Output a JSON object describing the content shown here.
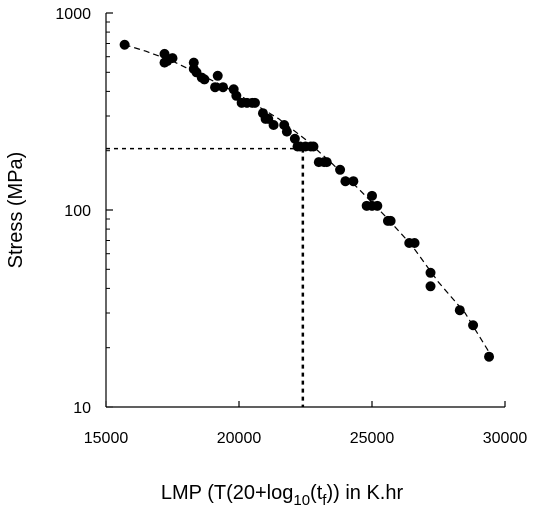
{
  "chart_data": {
    "type": "scatter",
    "ylabel": "Stress (MPa)",
    "xlabel_parts": {
      "prefix": "LMP (T(20+log",
      "sub1": "10",
      "mid": "(t",
      "sub2": "f",
      "suffix": ")) in K.hr"
    },
    "xlim": [
      15000,
      30000
    ],
    "ylim": [
      10,
      1000
    ],
    "yscale": "log",
    "x_ticks": [
      15000,
      20000,
      25000,
      30000
    ],
    "x_tick_labels": [
      "15000",
      "20000",
      "25000",
      "30000"
    ],
    "y_ticks": [
      10,
      100,
      1000
    ],
    "y_tick_labels": [
      "10",
      "100",
      "1000"
    ],
    "grid": false,
    "legend": "none",
    "marker_color": "#000000",
    "series": [
      {
        "points": [
          [
            15700,
            690
          ],
          [
            17200,
            620
          ],
          [
            17200,
            560
          ],
          [
            17500,
            590
          ],
          [
            17300,
            570
          ],
          [
            18300,
            560
          ],
          [
            18300,
            520
          ],
          [
            18400,
            500
          ],
          [
            18700,
            460
          ],
          [
            18600,
            470
          ],
          [
            19200,
            480
          ],
          [
            19100,
            420
          ],
          [
            19400,
            420
          ],
          [
            19800,
            410
          ],
          [
            19900,
            380
          ],
          [
            20100,
            350
          ],
          [
            20300,
            350
          ],
          [
            20500,
            350
          ],
          [
            20600,
            350
          ],
          [
            20900,
            310
          ],
          [
            21000,
            290
          ],
          [
            21100,
            290
          ],
          [
            21300,
            270
          ],
          [
            21700,
            270
          ],
          [
            21800,
            250
          ],
          [
            22100,
            230
          ],
          [
            22200,
            210
          ],
          [
            22300,
            210
          ],
          [
            22500,
            210
          ],
          [
            22700,
            210
          ],
          [
            22800,
            210
          ],
          [
            23000,
            175
          ],
          [
            23200,
            175
          ],
          [
            23300,
            175
          ],
          [
            23800,
            160
          ],
          [
            24000,
            140
          ],
          [
            24300,
            140
          ],
          [
            24800,
            105
          ],
          [
            25000,
            105
          ],
          [
            25000,
            118
          ],
          [
            25200,
            105
          ],
          [
            25600,
            88
          ],
          [
            25700,
            88
          ],
          [
            26400,
            68
          ],
          [
            26600,
            68
          ],
          [
            27200,
            48
          ],
          [
            27200,
            41
          ],
          [
            28300,
            31
          ],
          [
            28800,
            26
          ],
          [
            29400,
            18
          ]
        ]
      }
    ],
    "fit_curve": [
      [
        15700,
        690
      ],
      [
        16500,
        640
      ],
      [
        17500,
        570
      ],
      [
        18500,
        490
      ],
      [
        19500,
        420
      ],
      [
        20500,
        350
      ],
      [
        21500,
        290
      ],
      [
        22500,
        228
      ],
      [
        23500,
        172
      ],
      [
        24500,
        128
      ],
      [
        25500,
        93
      ],
      [
        26500,
        66
      ],
      [
        27500,
        43
      ],
      [
        28500,
        30
      ],
      [
        29400,
        19
      ]
    ],
    "reference_lines": {
      "y_value": 205,
      "x_value": 22400
    }
  }
}
